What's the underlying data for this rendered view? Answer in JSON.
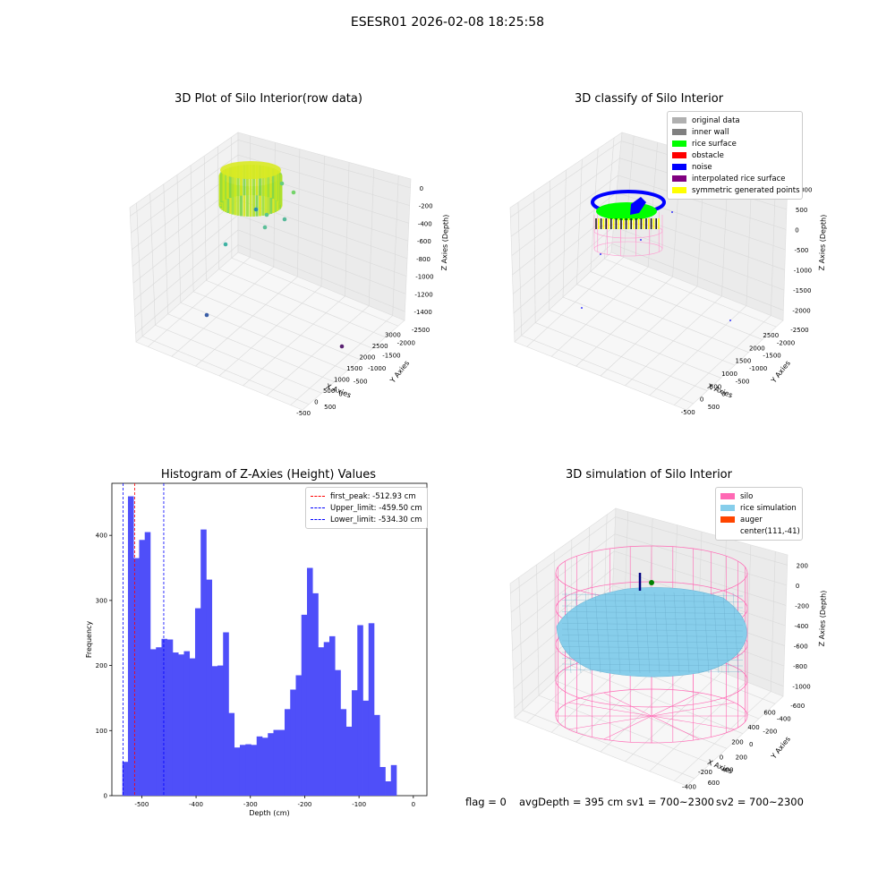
{
  "suptitle": "ESESR01 2026-02-08 18:25:58",
  "status": {
    "flag": "flag = 0",
    "avg_depth": "avgDepth = 395 cm",
    "sv1": "sv1 = 700~2300",
    "sv2": "sv2 = 700~2300"
  },
  "colors": {
    "hist_bar": "#4f4ff9",
    "silo": "#ff69b4",
    "rice_sim": "#87ceeb",
    "auger": "#ff4500",
    "rice_surface": "#00ff00",
    "obstacle": "#ff0000",
    "noise": "#0000ff"
  },
  "chart_data": [
    {
      "type": "scatter",
      "subtype": "3d",
      "title": "3D Plot of Silo Interior(row data)",
      "xlabel": "X Axies",
      "ylabel": "Y Axies",
      "zlabel": "Z Axies (Depth)",
      "x_ticks": [
        "-500",
        "0",
        "500",
        "1000",
        "1500",
        "2000",
        "2500",
        "3000"
      ],
      "y_ticks": [
        "500",
        "0",
        "-500",
        "-1000",
        "-1500",
        "-2000",
        "-2500"
      ],
      "z_ticks": [
        "0",
        "-200",
        "-400",
        "-600",
        "-800",
        "-1000",
        "-1200",
        "-1400"
      ]
    },
    {
      "type": "scatter",
      "subtype": "3d",
      "title": "3D classify of Silo Interior",
      "xlabel": "X Axies",
      "ylabel": "Y Axies",
      "zlabel": "Z Axies (Depth)",
      "x_ticks": [
        "-500",
        "0",
        "500",
        "1000",
        "1500",
        "2000",
        "2500"
      ],
      "y_ticks": [
        "500",
        "0",
        "-500",
        "-1000",
        "-1500",
        "-2000",
        "-2500"
      ],
      "z_ticks": [
        "1000",
        "500",
        "0",
        "-500",
        "-1000",
        "-1500",
        "-2000"
      ],
      "legend": [
        {
          "name": "original data",
          "color": "#b0b0b0"
        },
        {
          "name": "inner wall",
          "color": "#808080"
        },
        {
          "name": "rice surface",
          "color": "#00ff00"
        },
        {
          "name": "obstacle",
          "color": "#ff0000"
        },
        {
          "name": "noise",
          "color": "#0000ff"
        },
        {
          "name": "interpolated rice surface",
          "color": "#800080"
        },
        {
          "name": "symmetric generated points",
          "color": "#ffff00"
        }
      ],
      "legend_position": "top-right"
    },
    {
      "type": "bar",
      "subtype": "histogram",
      "title": "Histogram of Z-Axies (Height) Values",
      "xlabel": "Depth (cm)",
      "ylabel": "Frequency",
      "xlim": [
        -555,
        25
      ],
      "ylim": [
        0,
        480
      ],
      "x_ticks": [
        -500,
        -400,
        -300,
        -200,
        -100,
        0
      ],
      "y_ticks": [
        0,
        100,
        200,
        300,
        400
      ],
      "bin_start": -546,
      "bin_width": 10.3,
      "values": [
        0,
        52,
        460,
        365,
        393,
        405,
        225,
        228,
        241,
        240,
        220,
        217,
        222,
        211,
        288,
        409,
        332,
        199,
        200,
        251,
        127,
        74,
        78,
        79,
        78,
        91,
        89,
        96,
        101,
        101,
        133,
        163,
        185,
        278,
        350,
        311,
        228,
        236,
        245,
        193,
        133,
        106,
        162,
        262,
        146,
        265,
        124,
        44,
        22,
        47
      ],
      "vlines": [
        {
          "name": "first_peak: -512.93 cm",
          "x": -512.93,
          "color": "#ff0000"
        },
        {
          "name": "Upper_limit: -459.50 cm",
          "x": -459.5,
          "color": "#0000ff"
        },
        {
          "name": "Lower_limit: -534.30 cm",
          "x": -534.3,
          "color": "#0000ff"
        }
      ],
      "legend_position": "top-right"
    },
    {
      "type": "scatter",
      "subtype": "3d-surface",
      "title": "3D simulation of Silo Interior",
      "xlabel": "X Axies",
      "ylabel": "Y Axies",
      "zlabel": "Z Axies (Depth)",
      "x_ticks": [
        "-400",
        "-200",
        "0",
        "200",
        "400",
        "600"
      ],
      "y_ticks": [
        "600",
        "400",
        "200",
        "0",
        "-200",
        "-400",
        "-600"
      ],
      "z_ticks": [
        "200",
        "0",
        "-200",
        "-400",
        "-600",
        "-800",
        "-1000"
      ],
      "legend": [
        {
          "name": "silo",
          "color": "#ff69b4"
        },
        {
          "name": "rice simulation",
          "color": "#87ceeb"
        },
        {
          "name": "auger",
          "color": "#ff4500"
        },
        {
          "name": "center(111,-41)",
          "color": ""
        }
      ],
      "legend_position": "top-right"
    }
  ]
}
